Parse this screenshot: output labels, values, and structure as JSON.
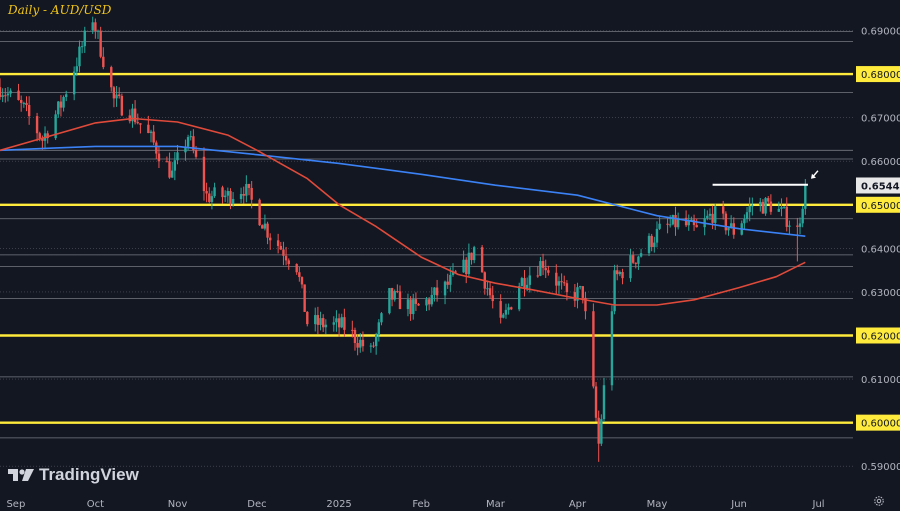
{
  "title": "Daily - AUD/USD",
  "brand": {
    "name": "TradingView",
    "icon": "tradingview-logo-icon"
  },
  "settings_icon": "gear-icon",
  "colors": {
    "background": "#131722",
    "grid": "#8a8d96",
    "up_candle": "#26a69a",
    "down_candle": "#ef5350",
    "ma_fast": "#3b82f6",
    "ma_slow": "#e04a3a",
    "key_level": "#ffeb3b",
    "axis_text": "#b2b5be",
    "last_price_bg": "#e8e8e8"
  },
  "chart_data": {
    "type": "candlestick",
    "title": "Daily - AUD/USD",
    "ylim": [
      0.585,
      0.697
    ],
    "x_range": [
      "2024-08-26",
      "2025-07-14"
    ],
    "x_tick_labels": [
      {
        "label": "Sep",
        "date": "2024-09-01"
      },
      {
        "label": "Oct",
        "date": "2024-10-01"
      },
      {
        "label": "Nov",
        "date": "2024-11-01"
      },
      {
        "label": "Dec",
        "date": "2024-12-01"
      },
      {
        "label": "2025",
        "date": "2025-01-01"
      },
      {
        "label": "Feb",
        "date": "2025-02-01"
      },
      {
        "label": "Mar",
        "date": "2025-03-01"
      },
      {
        "label": "Apr",
        "date": "2025-04-01"
      },
      {
        "label": "May",
        "date": "2025-05-01"
      },
      {
        "label": "Jun",
        "date": "2025-06-01"
      },
      {
        "label": "Jul",
        "date": "2025-07-01"
      }
    ],
    "y_tick_labels": [
      "0.59000",
      "0.60000",
      "0.61000",
      "0.62000",
      "0.63000",
      "0.64000",
      "0.65000",
      "0.66000",
      "0.67000",
      "0.68000",
      "0.69000"
    ],
    "key_levels": [
      0.6,
      0.62,
      0.65,
      0.68
    ],
    "minor_levels": [
      0.5965,
      0.6105,
      0.6285,
      0.6358,
      0.6385,
      0.6468,
      0.6605,
      0.6625,
      0.6758,
      0.6875,
      0.6898
    ],
    "resistance_line": {
      "start": "2025-05-22",
      "end": "2025-06-27",
      "value": 0.6546
    },
    "last_price": {
      "label": "0.65443",
      "value": 0.65443
    },
    "price_path": [
      [
        "2024-08-26",
        0.677
      ],
      [
        "2024-09-04",
        0.672
      ],
      [
        "2024-09-11",
        0.665
      ],
      [
        "2024-09-18",
        0.673
      ],
      [
        "2024-09-24",
        0.683
      ],
      [
        "2024-09-30",
        0.693
      ],
      [
        "2024-10-08",
        0.674
      ],
      [
        "2024-10-15",
        0.671
      ],
      [
        "2024-10-22",
        0.665
      ],
      [
        "2024-10-30",
        0.657
      ],
      [
        "2024-11-05",
        0.666
      ],
      [
        "2024-11-12",
        0.652
      ],
      [
        "2024-11-20",
        0.652
      ],
      [
        "2024-11-26",
        0.654
      ],
      [
        "2024-12-06",
        0.643
      ],
      [
        "2024-12-16",
        0.636
      ],
      [
        "2024-12-20",
        0.623
      ],
      [
        "2025-01-03",
        0.622
      ],
      [
        "2025-01-13",
        0.616
      ],
      [
        "2025-01-20",
        0.629
      ],
      [
        "2025-01-30",
        0.626
      ],
      [
        "2025-02-10",
        0.631
      ],
      [
        "2025-02-18",
        0.636
      ],
      [
        "2025-02-21",
        0.64
      ],
      [
        "2025-03-03",
        0.622
      ],
      [
        "2025-03-10",
        0.632
      ],
      [
        "2025-03-19",
        0.637
      ],
      [
        "2025-03-28",
        0.629
      ],
      [
        "2025-04-03",
        0.63
      ],
      [
        "2025-04-09",
        0.595
      ],
      [
        "2025-04-15",
        0.633
      ],
      [
        "2025-04-23",
        0.638
      ],
      [
        "2025-05-02",
        0.644
      ],
      [
        "2025-05-09",
        0.646
      ],
      [
        "2025-05-16",
        0.644
      ],
      [
        "2025-05-22",
        0.648
      ],
      [
        "2025-05-30",
        0.644
      ],
      [
        "2025-06-06",
        0.65
      ],
      [
        "2025-06-13",
        0.65
      ],
      [
        "2025-06-19",
        0.647
      ],
      [
        "2025-06-23",
        0.644
      ],
      [
        "2025-06-26",
        0.6544
      ]
    ],
    "series": [
      {
        "name": "Fast moving average (blue)",
        "points": [
          [
            "2024-08-26",
            0.6625
          ],
          [
            "2024-09-15",
            0.663
          ],
          [
            "2024-10-01",
            0.6634
          ],
          [
            "2024-11-01",
            0.6634
          ],
          [
            "2024-12-01",
            0.6615
          ],
          [
            "2025-01-01",
            0.6595
          ],
          [
            "2025-02-01",
            0.657
          ],
          [
            "2025-03-01",
            0.6545
          ],
          [
            "2025-04-01",
            0.6522
          ],
          [
            "2025-05-01",
            0.6475
          ],
          [
            "2025-06-01",
            0.6445
          ],
          [
            "2025-06-26",
            0.6428
          ]
        ]
      },
      {
        "name": "Slow moving average (red)",
        "points": [
          [
            "2024-08-26",
            0.6625
          ],
          [
            "2024-09-15",
            0.666
          ],
          [
            "2024-10-01",
            0.6688
          ],
          [
            "2024-10-15",
            0.6698
          ],
          [
            "2024-11-01",
            0.669
          ],
          [
            "2024-11-20",
            0.666
          ],
          [
            "2024-12-01",
            0.6625
          ],
          [
            "2024-12-20",
            0.656
          ],
          [
            "2025-01-01",
            0.65
          ],
          [
            "2025-01-15",
            0.645
          ],
          [
            "2025-02-01",
            0.638
          ],
          [
            "2025-02-15",
            0.634
          ],
          [
            "2025-03-01",
            0.632
          ],
          [
            "2025-03-15",
            0.6305
          ],
          [
            "2025-04-01",
            0.6285
          ],
          [
            "2025-04-15",
            0.627
          ],
          [
            "2025-05-01",
            0.627
          ],
          [
            "2025-05-15",
            0.6282
          ],
          [
            "2025-06-01",
            0.631
          ],
          [
            "2025-06-15",
            0.6335
          ],
          [
            "2025-06-26",
            0.6368
          ]
        ]
      }
    ]
  }
}
